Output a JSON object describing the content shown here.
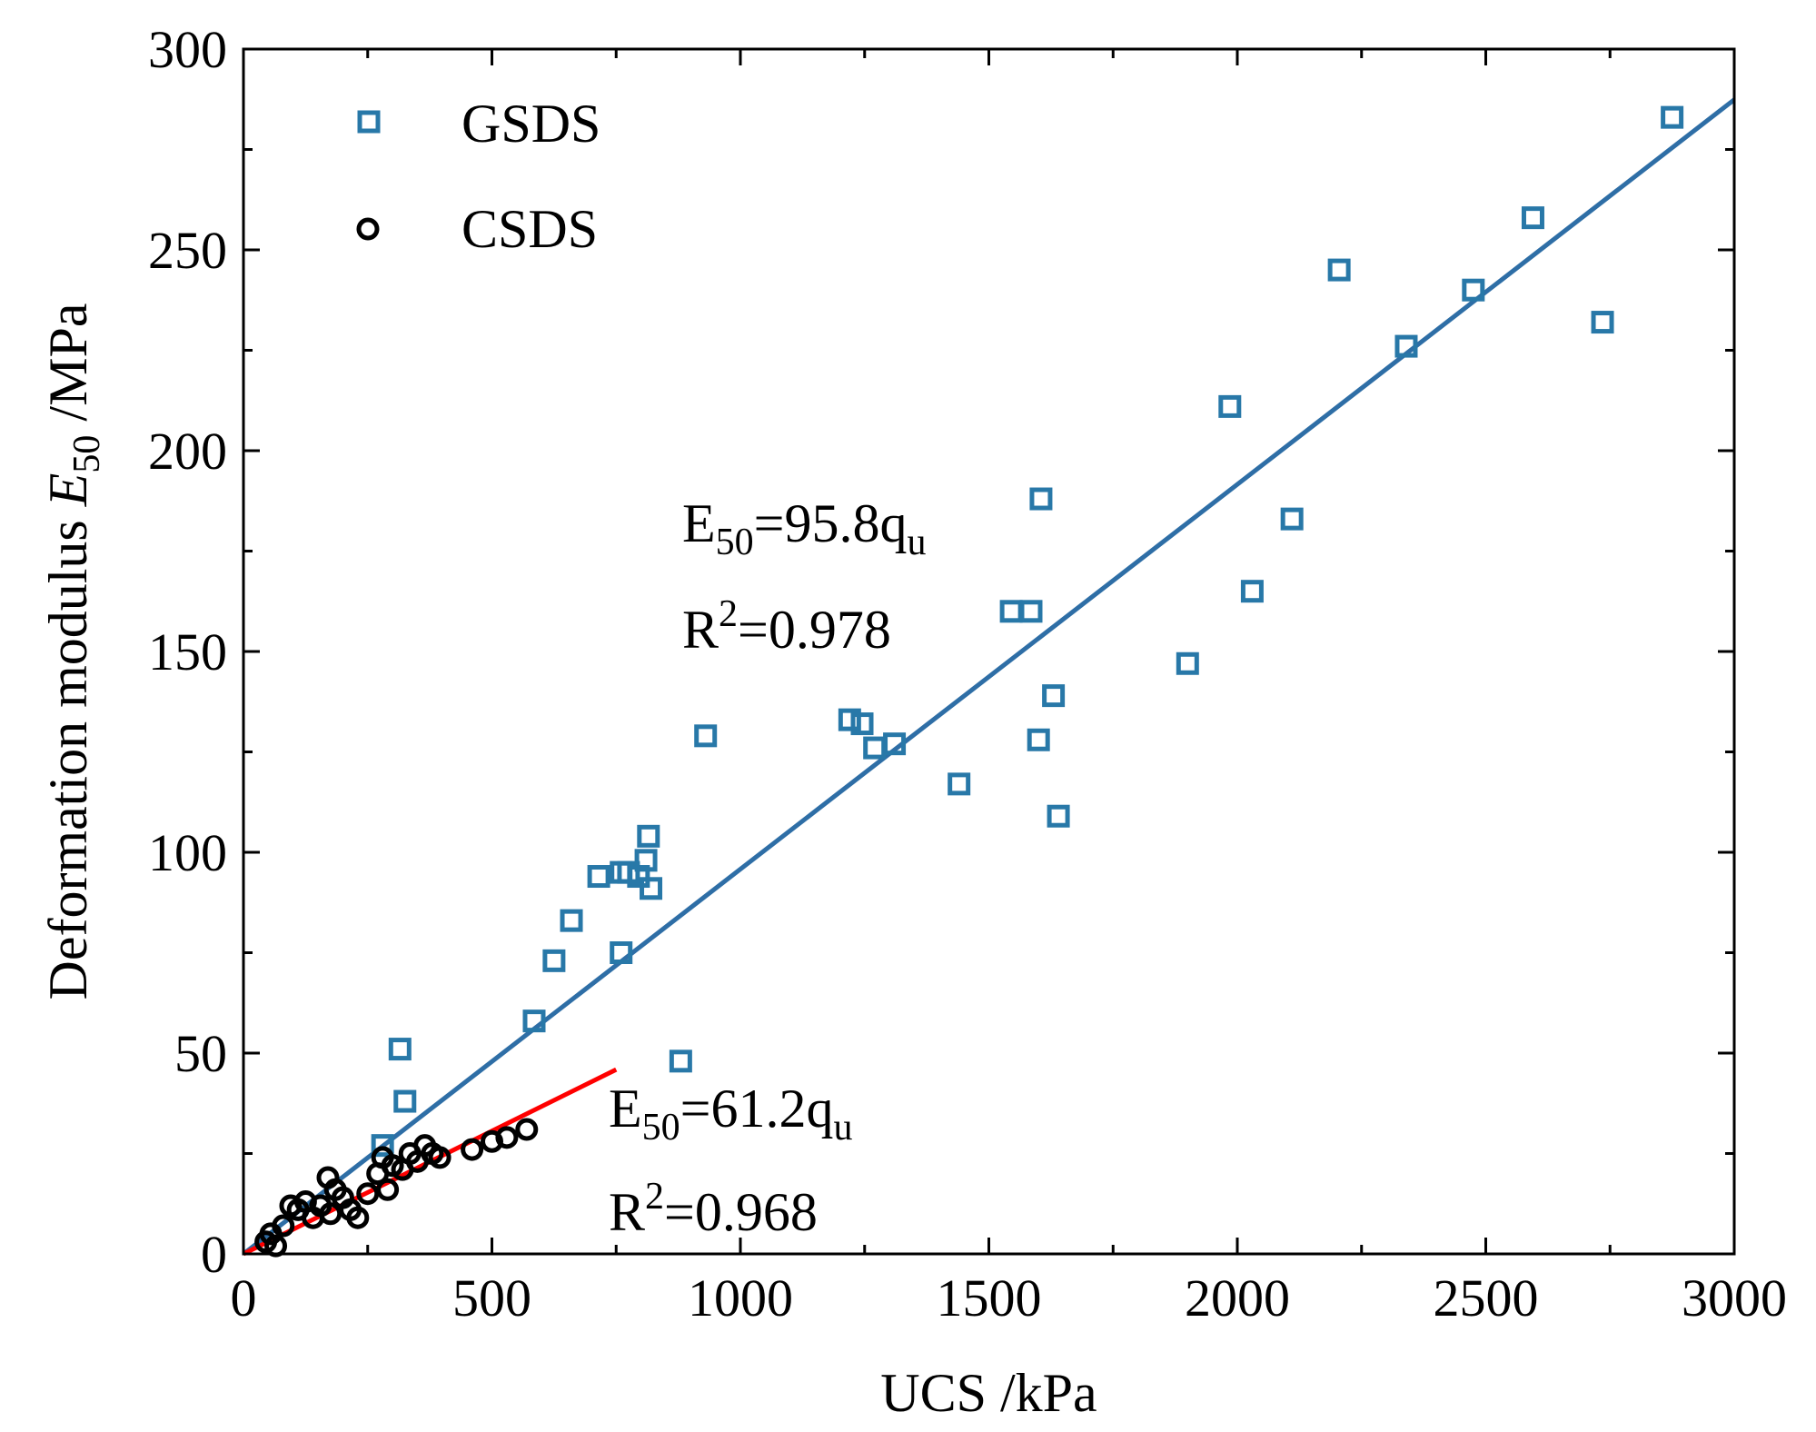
{
  "chart_data": {
    "type": "scatter",
    "xlabel": "UCS /kPa",
    "ylabel": {
      "prefix": "Deformation modulus ",
      "symbol": "E",
      "subscript": "50",
      "suffix": " /MPa"
    },
    "xlim": [
      0,
      3000
    ],
    "ylim": [
      0,
      300
    ],
    "xticks": [
      0,
      500,
      1000,
      1500,
      2000,
      2500,
      3000
    ],
    "yticks": [
      0,
      50,
      100,
      150,
      200,
      250,
      300
    ],
    "xtick_labels": [
      "0",
      "500",
      "1000",
      "1500",
      "2000",
      "2500",
      "3000"
    ],
    "ytick_labels": [
      "0",
      "50",
      "100",
      "150",
      "200",
      "250",
      "300"
    ],
    "legend_position": "top-left",
    "series": [
      {
        "name": "GSDS",
        "marker": "square",
        "color": "#2878a8",
        "x": [
          280,
          315,
          325,
          585,
          625,
          660,
          715,
          760,
          775,
          795,
          810,
          815,
          820,
          760,
          880,
          930,
          1220,
          1245,
          1270,
          1310,
          1440,
          1545,
          1585,
          1600,
          1605,
          1630,
          1640,
          1900,
          1985,
          2030,
          2110,
          2205,
          2340,
          2475,
          2595,
          2735,
          2875
        ],
        "y": [
          27,
          51,
          38,
          58,
          73,
          83,
          94,
          95,
          95,
          94,
          98,
          104,
          91,
          75,
          48,
          129,
          133,
          132,
          126,
          127,
          117,
          160,
          160,
          128,
          188,
          139,
          109,
          147,
          211,
          165,
          183,
          245,
          226,
          240,
          258,
          232,
          283
        ]
      },
      {
        "name": "CSDS",
        "marker": "circle",
        "color": "#000000",
        "x": [
          45,
          55,
          65,
          80,
          95,
          110,
          125,
          140,
          155,
          170,
          175,
          185,
          200,
          215,
          230,
          250,
          270,
          280,
          290,
          300,
          320,
          335,
          350,
          365,
          380,
          395,
          460,
          500,
          530,
          570
        ],
        "y": [
          3,
          5,
          2,
          7,
          12,
          11,
          13,
          9,
          12,
          19,
          10,
          16,
          14,
          11,
          9,
          15,
          20,
          24,
          16,
          22,
          21,
          25,
          23,
          27,
          25,
          24,
          26,
          28,
          29,
          31
        ]
      }
    ],
    "fits": [
      {
        "series": "GSDS",
        "slope": 95.8,
        "x_range": [
          0,
          3000
        ],
        "color": "#2e6ea6",
        "equation": {
          "lhs": "E",
          "lhs_sub": "50",
          "rhs": "=95.8q",
          "rhs_sub": "u"
        },
        "r2": {
          "base": "R",
          "sup": "2",
          "rest": "=0.978"
        }
      },
      {
        "series": "CSDS",
        "slope": 61.2,
        "x_range": [
          0,
          750
        ],
        "color": "#ff0000",
        "equation": {
          "lhs": "E",
          "lhs_sub": "50",
          "rhs": "=61.2q",
          "rhs_sub": "u"
        },
        "r2": {
          "base": "R",
          "sup": "2",
          "rest": "=0.968"
        }
      }
    ]
  }
}
